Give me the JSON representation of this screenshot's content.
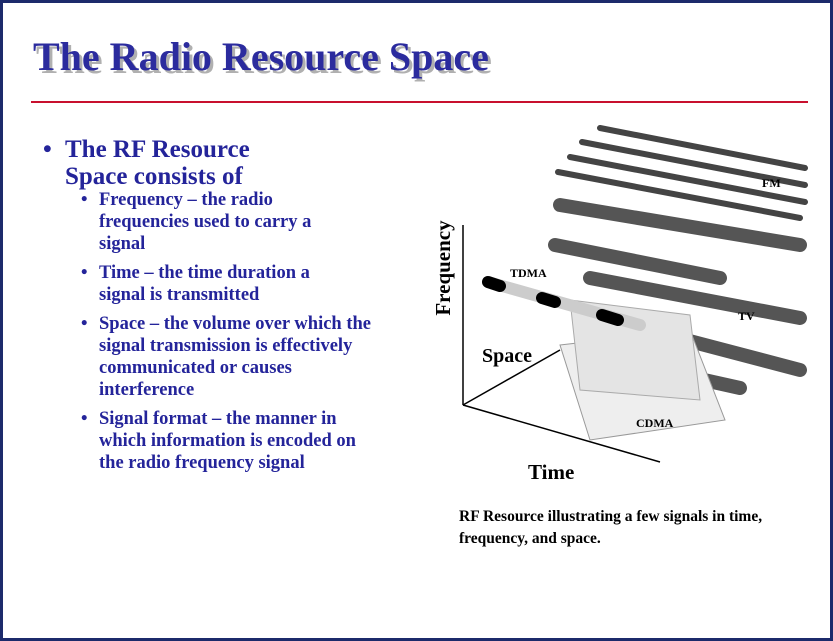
{
  "title": "The Radio Resource Space",
  "bullet": {
    "text": "The RF Resource Space consists of",
    "items": [
      "Frequency – the radio frequencies used to carry a signal",
      "Time – the time duration a signal is transmitted",
      "Space – the volume over which the signal transmission is effectively communicated or causes interference",
      "Signal format – the manner in which information is encoded on the radio frequency signal"
    ]
  },
  "figure": {
    "labels": {
      "frequency": "Frequency",
      "fm": "FM",
      "tdma": "TDMA",
      "tv": "TV",
      "space": "Space",
      "cdma": "CDMA",
      "time": "Time"
    },
    "caption": "RF Resource illustrating a few signals in time, frequency, and space."
  }
}
